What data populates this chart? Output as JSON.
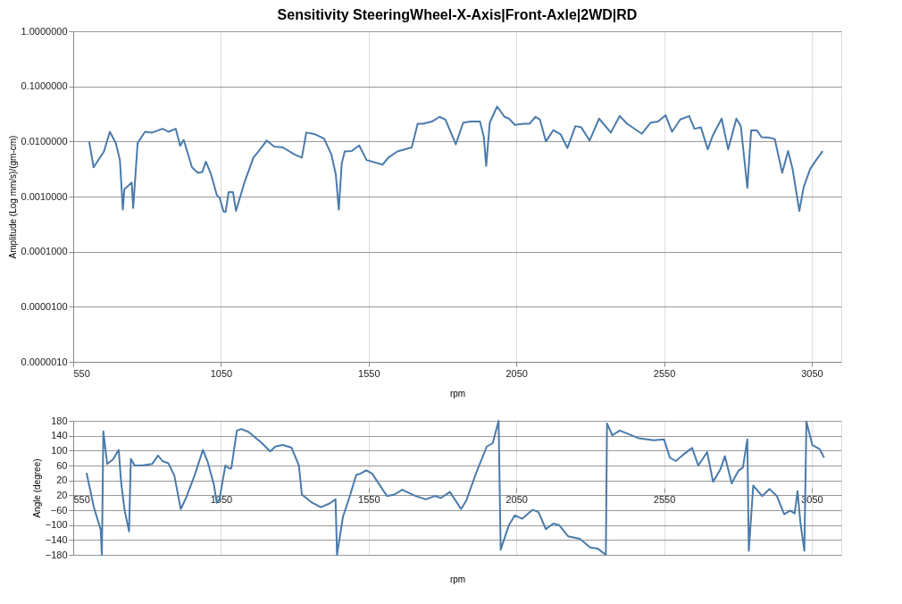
{
  "chart_data": [
    {
      "type": "line",
      "title": "Sensitivity SteeringWheel-X-Axis|Front-Axle|2WD|RD",
      "xlabel": "rpm",
      "ylabel": "Amplitude  (Log mm/s)/(gm-cm)",
      "log": true,
      "grid": true,
      "xlim": [
        550,
        3150
      ],
      "xticks": [
        550,
        1050,
        1550,
        2050,
        2550,
        3050
      ],
      "ylim": [
        1e-06,
        1
      ],
      "yticks": [
        {
          "value": 1e-06,
          "label": "0.0000010"
        },
        {
          "value": 1e-05,
          "label": "0.0000100"
        },
        {
          "value": 0.0001,
          "label": "0.0001000"
        },
        {
          "value": 0.001,
          "label": "0.0010000"
        },
        {
          "value": 0.01,
          "label": "0.0100000"
        },
        {
          "value": 0.1,
          "label": "0.1000000"
        },
        {
          "value": 1,
          "label": "1.0000000"
        }
      ],
      "x": [
        604,
        619,
        654,
        674,
        694,
        708,
        718,
        723,
        748,
        753,
        768,
        793,
        817,
        852,
        872,
        897,
        912,
        924,
        952,
        972,
        987,
        999,
        1017,
        1036,
        1046,
        1059,
        1066,
        1076,
        1091,
        1101,
        1131,
        1160,
        1180,
        1205,
        1230,
        1260,
        1299,
        1324,
        1339,
        1369,
        1399,
        1424,
        1439,
        1449,
        1459,
        1469,
        1493,
        1518,
        1543,
        1597,
        1617,
        1647,
        1696,
        1716,
        1734,
        1764,
        1790,
        1810,
        1845,
        1870,
        1895,
        1927,
        1940,
        1948,
        1960,
        1985,
        2010,
        2025,
        2045,
        2075,
        2095,
        2115,
        2130,
        2150,
        2175,
        2200,
        2223,
        2250,
        2270,
        2298,
        2330,
        2370,
        2400,
        2425,
        2475,
        2505,
        2530,
        2555,
        2577,
        2605,
        2635,
        2653,
        2675,
        2698,
        2715,
        2745,
        2767,
        2795,
        2810,
        2832,
        2845,
        2865,
        2880,
        2905,
        2925,
        2950,
        2970,
        2985,
        3008,
        3023,
        3045,
        3065,
        3087
      ],
      "series": [
        {
          "color": "#4a7bab",
          "values": [
            0.01,
            0.0034,
            0.0066,
            0.015,
            0.0094,
            0.0046,
            0.00058,
            0.00135,
            0.0018,
            0.00062,
            0.0094,
            0.015,
            0.0145,
            0.017,
            0.015,
            0.017,
            0.0083,
            0.0107,
            0.0034,
            0.0027,
            0.0028,
            0.0043,
            0.0025,
            0.00107,
            0.00094,
            0.00053,
            0.00053,
            0.0012,
            0.0012,
            0.00055,
            0.0019,
            0.0051,
            0.0069,
            0.0104,
            0.0081,
            0.0078,
            0.0058,
            0.0051,
            0.0145,
            0.0135,
            0.0113,
            0.0058,
            0.0025,
            0.00058,
            0.004,
            0.0066,
            0.0067,
            0.0085,
            0.0046,
            0.0038,
            0.0051,
            0.0066,
            0.0078,
            0.021,
            0.021,
            0.023,
            0.028,
            0.025,
            0.0089,
            0.022,
            0.023,
            0.023,
            0.012,
            0.0036,
            0.022,
            0.043,
            0.028,
            0.026,
            0.02,
            0.021,
            0.021,
            0.028,
            0.025,
            0.01,
            0.016,
            0.0135,
            0.0076,
            0.019,
            0.018,
            0.0104,
            0.026,
            0.0145,
            0.029,
            0.021,
            0.0138,
            0.022,
            0.023,
            0.03,
            0.015,
            0.025,
            0.029,
            0.017,
            0.018,
            0.0072,
            0.0128,
            0.026,
            0.0072,
            0.026,
            0.019,
            0.00144,
            0.016,
            0.0158,
            0.012,
            0.0118,
            0.011,
            0.0027,
            0.0067,
            0.0032,
            0.00055,
            0.0015,
            0.0032,
            0.0046,
            0.0067
          ]
        }
      ]
    },
    {
      "type": "line",
      "xlabel": "rpm",
      "ylabel": "Angle  (degree)",
      "grid": true,
      "xlim": [
        550,
        3150
      ],
      "xticks": [
        550,
        1050,
        1550,
        2050,
        2550,
        3050
      ],
      "ylim": [
        -180,
        180
      ],
      "yticks": [
        -180,
        -140,
        -100,
        -60,
        {
          "value": -20,
          "label": "20"
        },
        20,
        60,
        100,
        140,
        180
      ],
      "x": [
        595,
        620,
        643,
        647,
        652,
        665,
        685,
        704,
        712,
        724,
        739,
        745,
        758,
        783,
        817,
        837,
        852,
        872,
        892,
        914,
        932,
        961,
        989,
        1006,
        1026,
        1036,
        1045,
        1065,
        1078,
        1085,
        1104,
        1119,
        1144,
        1189,
        1217,
        1234,
        1259,
        1289,
        1314,
        1324,
        1359,
        1388,
        1418,
        1438,
        1443,
        1463,
        1488,
        1508,
        1522,
        1542,
        1562,
        1587,
        1612,
        1637,
        1664,
        1709,
        1744,
        1774,
        1795,
        1825,
        1845,
        1863,
        1880,
        1915,
        1950,
        1970,
        1990,
        1997,
        2025,
        2045,
        2070,
        2105,
        2125,
        2150,
        2175,
        2195,
        2225,
        2265,
        2300,
        2325,
        2353,
        2357,
        2375,
        2400,
        2425,
        2465,
        2515,
        2550,
        2570,
        2590,
        2615,
        2645,
        2666,
        2696,
        2716,
        2741,
        2756,
        2779,
        2802,
        2817,
        2832,
        2837,
        2852,
        2882,
        2907,
        2932,
        2957,
        2977,
        2992,
        3002,
        3012,
        3025,
        3032,
        3052,
        3077,
        3092
      ],
      "series": [
        {
          "color": "#4a7bab",
          "values": [
            40,
            -52,
            -113,
            -180,
            152,
            64,
            77,
            102,
            16,
            -61,
            -117,
            78,
            60,
            60,
            64,
            87,
            72,
            66,
            34,
            -57,
            -27,
            34,
            102,
            68,
            9,
            -40,
            -31,
            60,
            52,
            52,
            154,
            158,
            150,
            120,
            98,
            111,
            115,
            108,
            60,
            -18,
            -40,
            -52,
            -42,
            -31,
            -180,
            -78,
            -18,
            35,
            38,
            47,
            38,
            8,
            -22,
            -18,
            -5,
            -22,
            -31,
            -22,
            -27,
            -11,
            -35,
            -57,
            -35,
            42,
            111,
            120,
            180,
            -166,
            -100,
            -74,
            -83,
            -59,
            -65,
            -111,
            -96,
            -100,
            -130,
            -137,
            -160,
            -163,
            -180,
            173,
            141,
            154,
            146,
            133,
            128,
            130,
            81,
            72,
            89,
            107,
            60,
            96,
            16,
            50,
            85,
            12,
            46,
            55,
            130,
            -169,
            6,
            -22,
            -3,
            -22,
            -71,
            -61,
            -69,
            -9,
            -96,
            -169,
            178,
            115,
            104,
            81
          ]
        }
      ]
    }
  ]
}
